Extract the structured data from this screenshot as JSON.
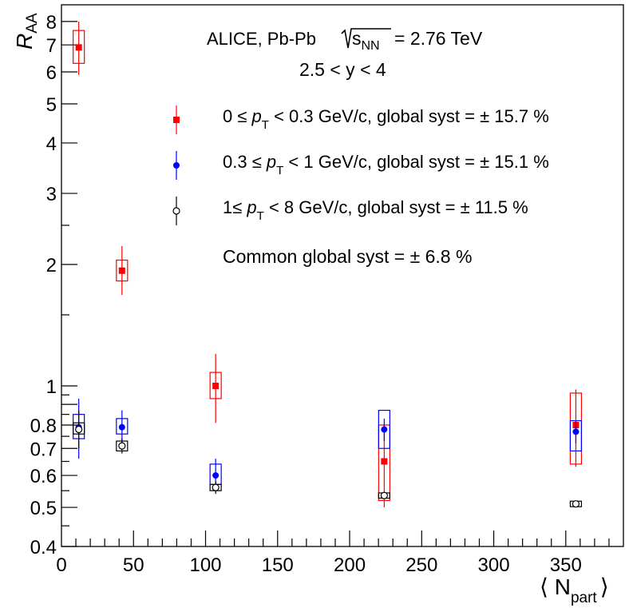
{
  "chart_data": {
    "type": "scatter",
    "title": "ALICE, Pb-Pb",
    "energy_label": "= 2.76 TeV",
    "rapidity_label": "2.5 < y < 4",
    "xlabel": "⟨ N",
    "xlabel_sub": "part",
    "xlabel_close": "⟩",
    "ylabel": "R",
    "ylabel_sub": "AA",
    "x_range": [
      0,
      390
    ],
    "y_range": [
      0.4,
      8.8
    ],
    "y_scale": "log",
    "x_ticks": [
      "0",
      "50",
      "100",
      "150",
      "200",
      "250",
      "300",
      "350"
    ],
    "y_ticks": [
      "0.4",
      "0.5",
      "0.6",
      "0.7",
      "0.8",
      "1",
      "2",
      "3",
      "4",
      "5",
      "6",
      "7",
      "8"
    ],
    "series": [
      {
        "name": "0 ≤ pT < 0.3 GeV/c",
        "legend_text": [
          "0 ≤ ",
          "p",
          "T",
          " < 0.3 GeV/c, global syst = ± 15.7 %"
        ],
        "color": "#ff0000",
        "marker": "filled-square",
        "points": [
          {
            "x": 12,
            "y": 6.9,
            "stat": [
              5.9,
              8.0
            ],
            "syst": [
              6.3,
              7.6
            ]
          },
          {
            "x": 42,
            "y": 1.93,
            "stat": [
              1.68,
              2.22
            ],
            "syst": [
              1.82,
              2.05
            ]
          },
          {
            "x": 107,
            "y": 1.0,
            "stat": [
              0.81,
              1.2
            ],
            "syst": [
              0.93,
              1.08
            ]
          },
          {
            "x": 224,
            "y": 0.65,
            "stat": [
              0.5,
              0.8
            ],
            "syst": [
              0.52,
              0.8
            ]
          },
          {
            "x": 357,
            "y": 0.8,
            "stat": [
              0.63,
              0.98
            ],
            "syst": [
              0.64,
              0.96
            ]
          }
        ]
      },
      {
        "name": "0.3 ≤ pT < 1 GeV/c",
        "legend_text": [
          "0.3 ≤ ",
          "p",
          "T",
          " < 1 GeV/c, global syst = ± 15.1 %"
        ],
        "color": "#0000ff",
        "marker": "filled-circle",
        "points": [
          {
            "x": 12,
            "y": 0.79,
            "stat": [
              0.66,
              0.93
            ],
            "syst": [
              0.74,
              0.85
            ]
          },
          {
            "x": 42,
            "y": 0.79,
            "stat": [
              0.72,
              0.87
            ],
            "syst": [
              0.76,
              0.83
            ]
          },
          {
            "x": 107,
            "y": 0.6,
            "stat": [
              0.56,
              0.66
            ],
            "syst": [
              0.57,
              0.64
            ]
          },
          {
            "x": 224,
            "y": 0.78,
            "stat": [
              0.73,
              0.83
            ],
            "syst": [
              0.7,
              0.87
            ]
          },
          {
            "x": 357,
            "y": 0.77,
            "stat": [
              0.72,
              0.82
            ],
            "syst": [
              0.69,
              0.82
            ]
          }
        ]
      },
      {
        "name": "1 ≤ pT < 8 GeV/c",
        "legend_text": [
          "1≤ ",
          "p",
          "T",
          " < 8 GeV/c, global syst = ± 11.5 %"
        ],
        "color": "#000000",
        "marker": "open-circle",
        "points": [
          {
            "x": 12,
            "y": 0.78,
            "stat": [
              0.7,
              0.87
            ],
            "syst": [
              0.76,
              0.81
            ]
          },
          {
            "x": 42,
            "y": 0.71,
            "stat": [
              0.68,
              0.74
            ],
            "syst": [
              0.69,
              0.73
            ]
          },
          {
            "x": 107,
            "y": 0.56,
            "stat": [
              0.54,
              0.58
            ],
            "syst": [
              0.55,
              0.57
            ]
          },
          {
            "x": 224,
            "y": 0.535,
            "stat": [
              0.525,
              0.545
            ],
            "syst": [
              0.527,
              0.543
            ]
          },
          {
            "x": 357,
            "y": 0.51,
            "stat": [
              0.5,
              0.52
            ],
            "syst": [
              0.502,
              0.518
            ]
          }
        ]
      }
    ],
    "annotations": {
      "common_syst": "Common global syst = ± 6.8 %"
    }
  }
}
